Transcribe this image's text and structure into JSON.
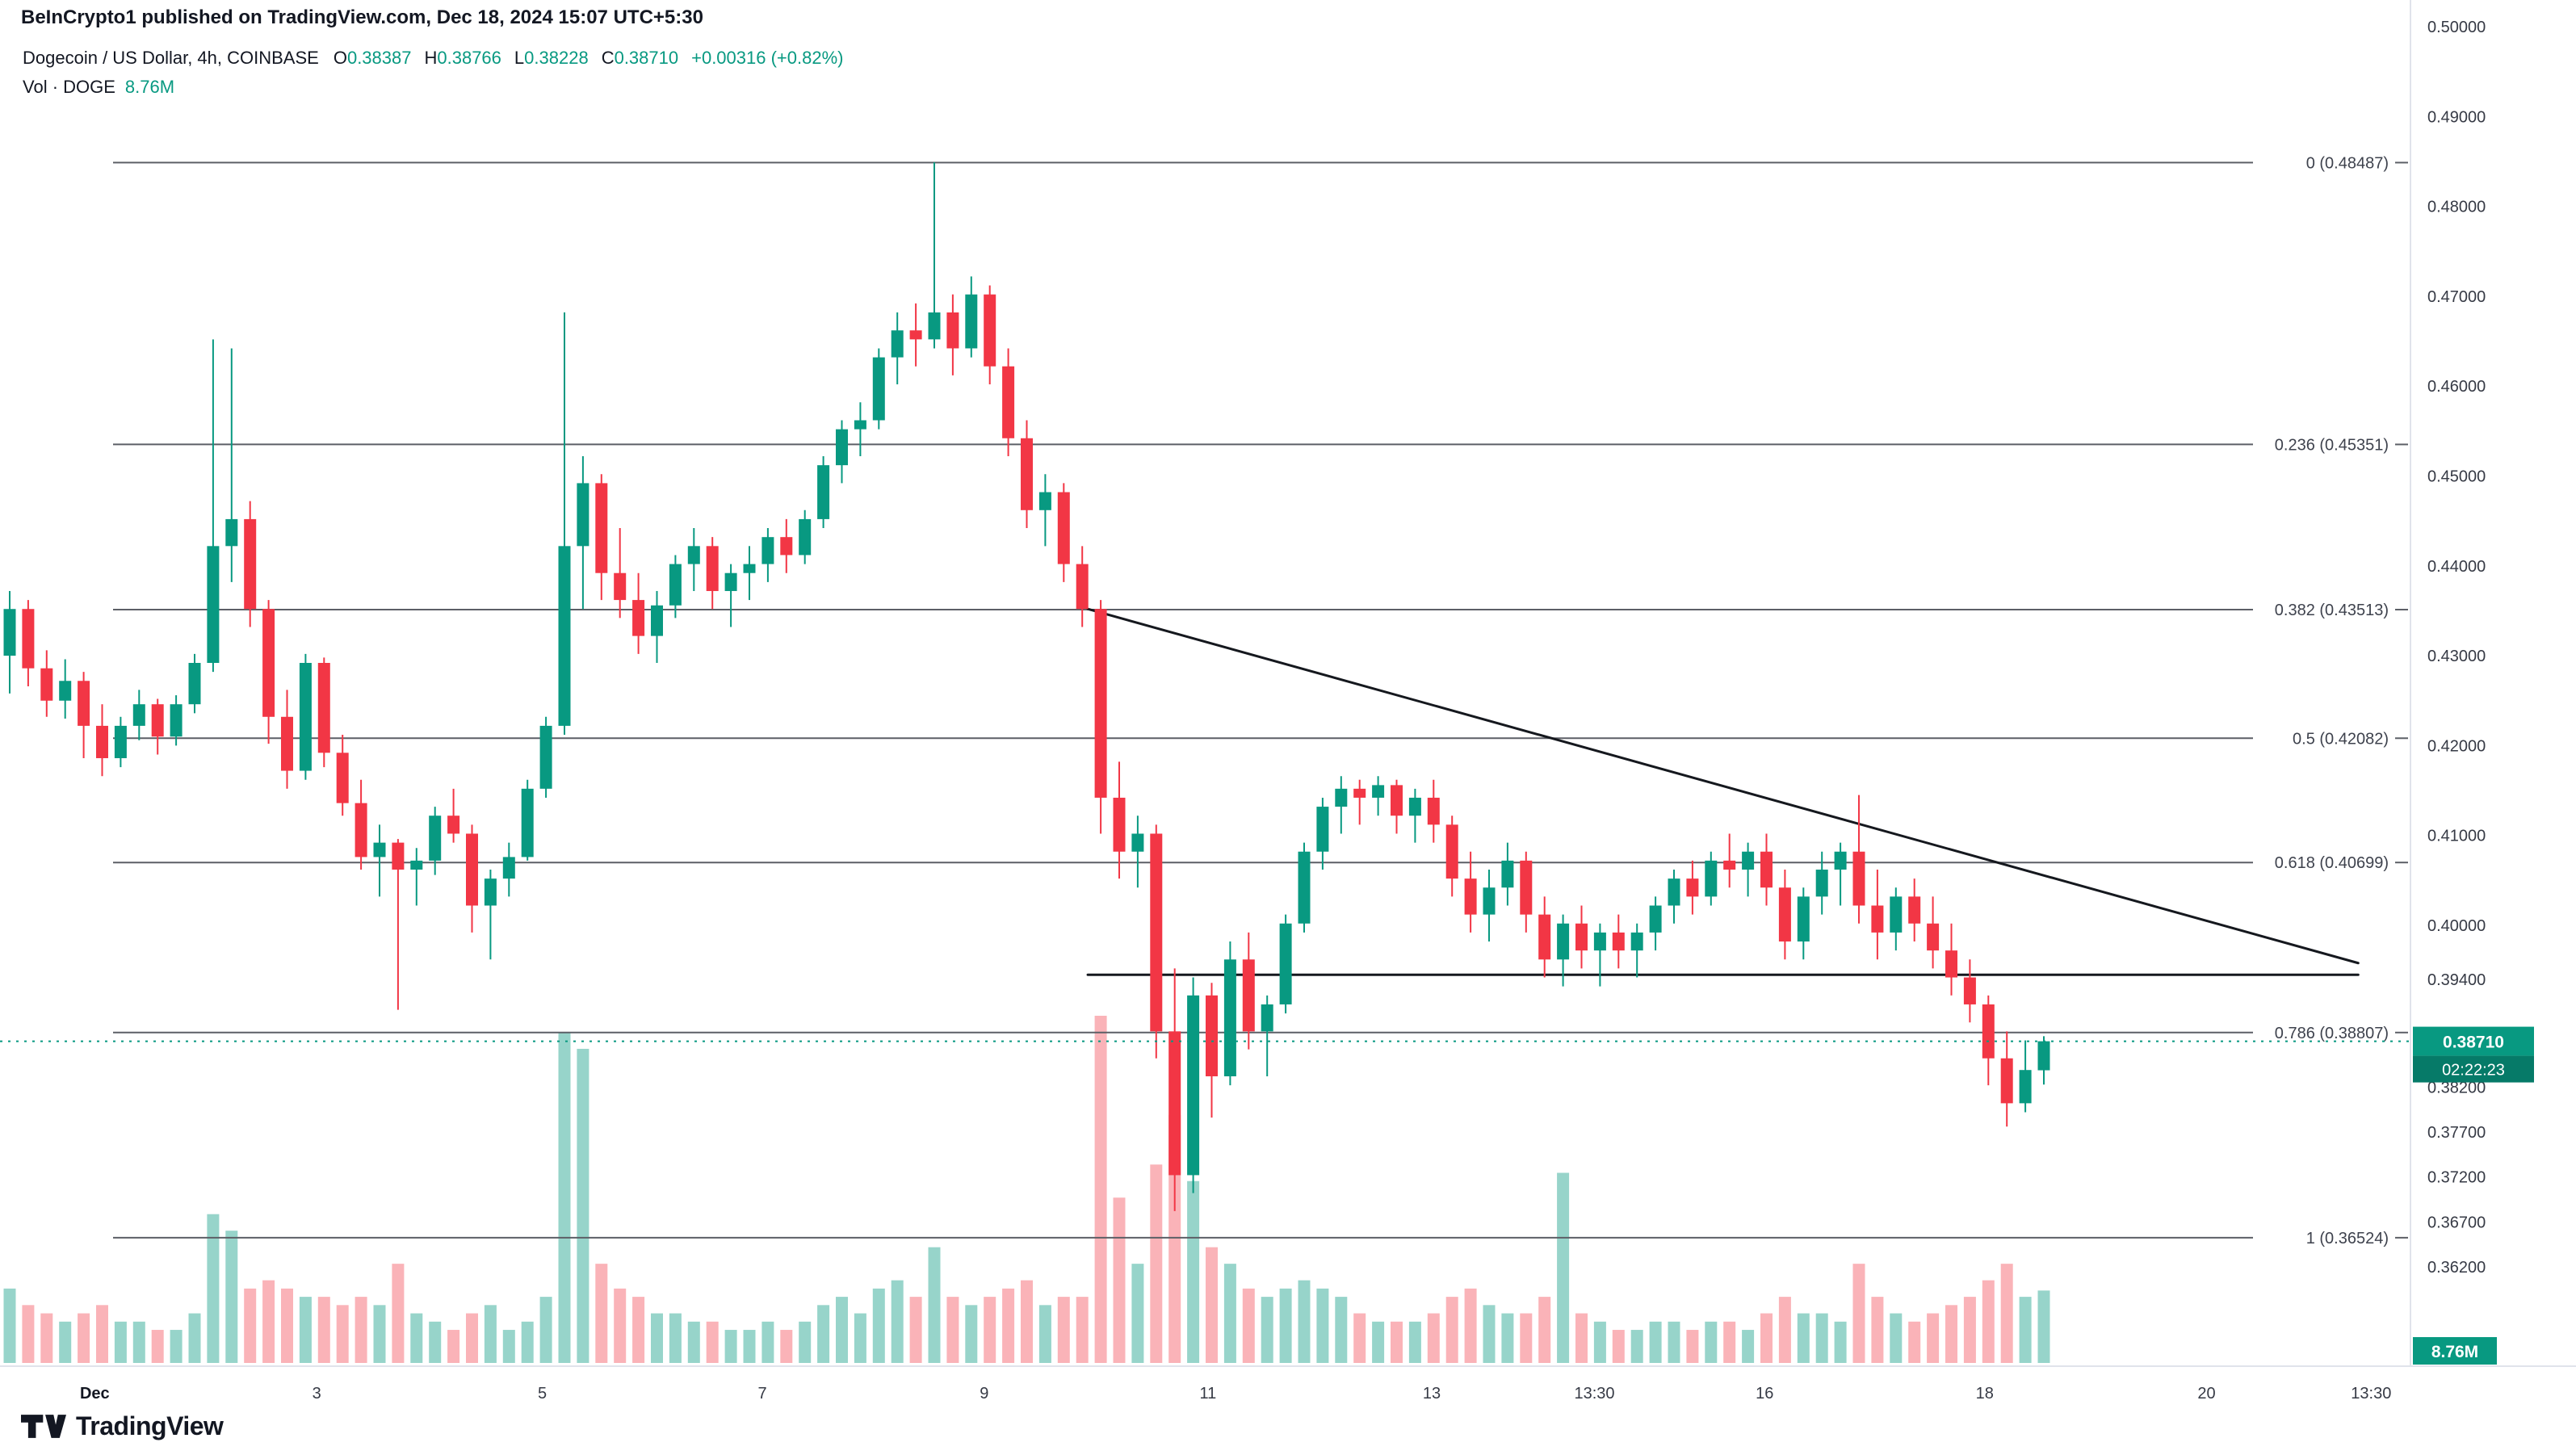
{
  "header": {
    "attribution": "BeInCrypto1 published on TradingView.com, Dec 18, 2024 15:07 UTC+5:30"
  },
  "legend": {
    "title": "Dogecoin / US Dollar, 4h, COINBASE",
    "ohlc": [
      {
        "k": "O",
        "v": "0.38387"
      },
      {
        "k": "H",
        "v": "0.38766"
      },
      {
        "k": "L",
        "v": "0.38228"
      },
      {
        "k": "C",
        "v": "0.38710"
      }
    ],
    "change": "+0.00316 (+0.82%)",
    "vol_label": "Vol · DOGE",
    "vol_value": "8.76M"
  },
  "logo": {
    "text": "TradingView"
  },
  "colors": {
    "up": "#089981",
    "down": "#f23645",
    "vol_up": "rgba(8,153,129,0.42)",
    "vol_down": "rgba(242,54,69,0.38)",
    "fib_line": "#5c5f66",
    "trend": "#15181e",
    "badge": "#089981",
    "countdown_bg": "#067a68",
    "axis_border": "#e0e3eb"
  },
  "chart_data": {
    "type": "candlestick",
    "symbol": "Dogecoin / US Dollar",
    "exchange": "COINBASE",
    "interval": "4h",
    "title": "Dogecoin / US Dollar, 4h, COINBASE",
    "price_range": [
      0.362,
      0.5
    ],
    "grid": false,
    "current_price": {
      "value": 0.3871,
      "text": "0.38710",
      "countdown": "02:22:23"
    },
    "volume_badge": "8.76M",
    "price_axis_labels": [
      "0.50000",
      "0.49000",
      "0.48000",
      "0.47000",
      "0.46000",
      "0.45000",
      "0.44000",
      "0.43000",
      "0.42000",
      "0.41000",
      "0.40000",
      "0.39400",
      "0.38200",
      "0.37700",
      "0.37200",
      "0.36700",
      "0.36200"
    ],
    "time_labels": [
      {
        "label": "Dec",
        "idx": 4.6,
        "bold": true
      },
      {
        "label": "3",
        "idx": 16.6
      },
      {
        "label": "5",
        "idx": 28.8
      },
      {
        "label": "7",
        "idx": 40.7
      },
      {
        "label": "9",
        "idx": 52.7
      },
      {
        "label": "11",
        "idx": 64.8
      },
      {
        "label": "13",
        "idx": 76.9
      },
      {
        "label": "13:30",
        "idx": 85.7
      },
      {
        "label": "16",
        "idx": 94.9
      },
      {
        "label": "18",
        "idx": 106.8
      },
      {
        "label": "20",
        "idx": 118.8
      },
      {
        "label": "13:30",
        "idx": 127.7
      }
    ],
    "fib_levels": [
      {
        "label": "0 (0.48487)",
        "level": "0",
        "price": 0.48487
      },
      {
        "label": "0.236 (0.45351)",
        "level": "0.236",
        "price": 0.45351
      },
      {
        "label": "0.382 (0.43513)",
        "level": "0.382",
        "price": 0.43513
      },
      {
        "label": "0.5 (0.42082)",
        "level": "0.5",
        "price": 0.42082
      },
      {
        "label": "0.618 (0.40699)",
        "level": "0.618",
        "price": 0.40699
      },
      {
        "label": "0.786 (0.38807)",
        "level": "0.786",
        "price": 0.38807
      },
      {
        "label": "1 (0.36524)",
        "level": "1",
        "price": 0.36524
      }
    ],
    "trendlines": [
      {
        "name": "triangle-resistance",
        "from": {
          "idx": 58.3,
          "price": 0.4352
        },
        "to": {
          "idx": 127,
          "price": 0.3958
        }
      },
      {
        "name": "triangle-support",
        "from": {
          "idx": 58.3,
          "price": 0.3945
        },
        "to": {
          "idx": 127,
          "price": 0.3945
        }
      }
    ],
    "candles": [
      [
        0.43,
        0.4372,
        0.4258,
        0.4352
      ],
      [
        0.4352,
        0.4362,
        0.4266,
        0.4286
      ],
      [
        0.4286,
        0.4306,
        0.4232,
        0.425
      ],
      [
        0.425,
        0.4296,
        0.423,
        0.4272
      ],
      [
        0.4272,
        0.4282,
        0.4186,
        0.4222
      ],
      [
        0.4222,
        0.4246,
        0.4166,
        0.4186
      ],
      [
        0.4186,
        0.4232,
        0.4176,
        0.4222
      ],
      [
        0.4222,
        0.4262,
        0.4206,
        0.4246
      ],
      [
        0.4246,
        0.4252,
        0.419,
        0.421
      ],
      [
        0.421,
        0.4256,
        0.42,
        0.4246
      ],
      [
        0.4246,
        0.4302,
        0.4236,
        0.4292
      ],
      [
        0.4292,
        0.4652,
        0.4282,
        0.4422
      ],
      [
        0.4422,
        0.4642,
        0.4382,
        0.4452
      ],
      [
        0.4452,
        0.4472,
        0.4332,
        0.4352
      ],
      [
        0.4352,
        0.4362,
        0.4202,
        0.4232
      ],
      [
        0.4232,
        0.4262,
        0.4152,
        0.4172
      ],
      [
        0.4172,
        0.4302,
        0.4162,
        0.4292
      ],
      [
        0.4292,
        0.4298,
        0.4176,
        0.4192
      ],
      [
        0.4192,
        0.4212,
        0.4122,
        0.4136
      ],
      [
        0.4136,
        0.4162,
        0.4062,
        0.4076
      ],
      [
        0.4076,
        0.4112,
        0.4032,
        0.4092
      ],
      [
        0.4092,
        0.4096,
        0.3906,
        0.4062
      ],
      [
        0.4062,
        0.4086,
        0.4022,
        0.4072
      ],
      [
        0.4072,
        0.4132,
        0.4056,
        0.4122
      ],
      [
        0.4122,
        0.4152,
        0.4092,
        0.4102
      ],
      [
        0.4102,
        0.4112,
        0.3992,
        0.4022
      ],
      [
        0.4022,
        0.4062,
        0.3962,
        0.4052
      ],
      [
        0.4052,
        0.4092,
        0.4032,
        0.4076
      ],
      [
        0.4076,
        0.4162,
        0.4072,
        0.4152
      ],
      [
        0.4152,
        0.4232,
        0.4142,
        0.4222
      ],
      [
        0.4222,
        0.4682,
        0.4212,
        0.4422
      ],
      [
        0.4422,
        0.4522,
        0.4352,
        0.4492
      ],
      [
        0.4492,
        0.4502,
        0.4362,
        0.4392
      ],
      [
        0.4392,
        0.4442,
        0.4342,
        0.4362
      ],
      [
        0.4362,
        0.4392,
        0.4302,
        0.4322
      ],
      [
        0.4322,
        0.4372,
        0.4292,
        0.4356
      ],
      [
        0.4356,
        0.4412,
        0.4342,
        0.4402
      ],
      [
        0.4402,
        0.4442,
        0.4372,
        0.4422
      ],
      [
        0.4422,
        0.4432,
        0.4352,
        0.4372
      ],
      [
        0.4372,
        0.4402,
        0.4332,
        0.4392
      ],
      [
        0.4392,
        0.4422,
        0.4362,
        0.4402
      ],
      [
        0.4402,
        0.4442,
        0.4382,
        0.4432
      ],
      [
        0.4432,
        0.4452,
        0.4392,
        0.4412
      ],
      [
        0.4412,
        0.4462,
        0.4402,
        0.4452
      ],
      [
        0.4452,
        0.4522,
        0.4442,
        0.4512
      ],
      [
        0.4512,
        0.4562,
        0.4492,
        0.4552
      ],
      [
        0.4552,
        0.4582,
        0.4522,
        0.4562
      ],
      [
        0.4562,
        0.4642,
        0.4552,
        0.4632
      ],
      [
        0.4632,
        0.4682,
        0.4602,
        0.4662
      ],
      [
        0.4662,
        0.4692,
        0.4622,
        0.4652
      ],
      [
        0.4652,
        0.4849,
        0.4642,
        0.4682
      ],
      [
        0.4682,
        0.4702,
        0.4612,
        0.4642
      ],
      [
        0.4642,
        0.4722,
        0.4632,
        0.4702
      ],
      [
        0.4702,
        0.4712,
        0.4602,
        0.4622
      ],
      [
        0.4622,
        0.4642,
        0.4522,
        0.4542
      ],
      [
        0.4542,
        0.4562,
        0.4442,
        0.4462
      ],
      [
        0.4462,
        0.4502,
        0.4422,
        0.4482
      ],
      [
        0.4482,
        0.4492,
        0.4382,
        0.4402
      ],
      [
        0.4402,
        0.4422,
        0.4332,
        0.4352
      ],
      [
        0.4352,
        0.4362,
        0.4102,
        0.4142
      ],
      [
        0.4142,
        0.4182,
        0.4052,
        0.4082
      ],
      [
        0.4082,
        0.4122,
        0.4042,
        0.4102
      ],
      [
        0.4102,
        0.4112,
        0.3852,
        0.3882
      ],
      [
        0.3882,
        0.3952,
        0.3682,
        0.3722
      ],
      [
        0.3722,
        0.3942,
        0.3702,
        0.3922
      ],
      [
        0.3922,
        0.3936,
        0.3786,
        0.3832
      ],
      [
        0.3832,
        0.3982,
        0.3822,
        0.3962
      ],
      [
        0.3962,
        0.3992,
        0.3862,
        0.3882
      ],
      [
        0.3882,
        0.3922,
        0.3832,
        0.3912
      ],
      [
        0.3912,
        0.4012,
        0.3902,
        0.4002
      ],
      [
        0.4002,
        0.4092,
        0.3992,
        0.4082
      ],
      [
        0.4082,
        0.4142,
        0.4062,
        0.4132
      ],
      [
        0.4132,
        0.4166,
        0.4102,
        0.4152
      ],
      [
        0.4152,
        0.4162,
        0.4112,
        0.4142
      ],
      [
        0.4142,
        0.4166,
        0.4122,
        0.4156
      ],
      [
        0.4156,
        0.4162,
        0.4102,
        0.4122
      ],
      [
        0.4122,
        0.4152,
        0.4092,
        0.4142
      ],
      [
        0.4142,
        0.4162,
        0.4092,
        0.4112
      ],
      [
        0.4112,
        0.4122,
        0.4032,
        0.4052
      ],
      [
        0.4052,
        0.4082,
        0.3992,
        0.4012
      ],
      [
        0.4012,
        0.4062,
        0.3982,
        0.4042
      ],
      [
        0.4042,
        0.4092,
        0.4022,
        0.4072
      ],
      [
        0.4072,
        0.4082,
        0.3992,
        0.4012
      ],
      [
        0.4012,
        0.4032,
        0.3942,
        0.3962
      ],
      [
        0.3962,
        0.4012,
        0.3932,
        0.4002
      ],
      [
        0.4002,
        0.4022,
        0.3952,
        0.3972
      ],
      [
        0.3972,
        0.4002,
        0.3932,
        0.3992
      ],
      [
        0.3992,
        0.4012,
        0.3952,
        0.3972
      ],
      [
        0.3972,
        0.4002,
        0.3942,
        0.3992
      ],
      [
        0.3992,
        0.4032,
        0.3972,
        0.4022
      ],
      [
        0.4022,
        0.4062,
        0.4002,
        0.4052
      ],
      [
        0.4052,
        0.4072,
        0.4012,
        0.4032
      ],
      [
        0.4032,
        0.4082,
        0.4022,
        0.4072
      ],
      [
        0.4072,
        0.4102,
        0.4042,
        0.4062
      ],
      [
        0.4062,
        0.4092,
        0.4032,
        0.4082
      ],
      [
        0.4082,
        0.4102,
        0.4022,
        0.4042
      ],
      [
        0.4042,
        0.4062,
        0.3962,
        0.3982
      ],
      [
        0.3982,
        0.4042,
        0.3962,
        0.4032
      ],
      [
        0.4032,
        0.4082,
        0.4012,
        0.4062
      ],
      [
        0.4062,
        0.4092,
        0.4022,
        0.4082
      ],
      [
        0.4082,
        0.4145,
        0.4002,
        0.4022
      ],
      [
        0.4022,
        0.4062,
        0.3962,
        0.3992
      ],
      [
        0.3992,
        0.4042,
        0.3972,
        0.4032
      ],
      [
        0.4032,
        0.4052,
        0.3982,
        0.4002
      ],
      [
        0.4002,
        0.4032,
        0.3952,
        0.3972
      ],
      [
        0.3972,
        0.4002,
        0.3922,
        0.3942
      ],
      [
        0.3942,
        0.3962,
        0.3892,
        0.3912
      ],
      [
        0.3912,
        0.3922,
        0.3822,
        0.3852
      ],
      [
        0.3852,
        0.3882,
        0.3776,
        0.3802
      ],
      [
        0.3802,
        0.3872,
        0.3792,
        0.3839
      ],
      [
        0.38387,
        0.38766,
        0.38228,
        0.3871
      ]
    ],
    "volumes_m": [
      9,
      7,
      6,
      5,
      6,
      7,
      5,
      5,
      4,
      4,
      6,
      18,
      16,
      9,
      10,
      9,
      8,
      8,
      7,
      8,
      7,
      12,
      6,
      5,
      4,
      6,
      7,
      4,
      5,
      8,
      40,
      38,
      12,
      9,
      8,
      6,
      6,
      5,
      5,
      4,
      4,
      5,
      4,
      5,
      7,
      8,
      6,
      9,
      10,
      8,
      14,
      8,
      7,
      8,
      9,
      10,
      7,
      8,
      8,
      42,
      20,
      12,
      24,
      30,
      22,
      14,
      12,
      9,
      8,
      9,
      10,
      9,
      8,
      6,
      5,
      5,
      5,
      6,
      8,
      9,
      7,
      6,
      6,
      8,
      23,
      6,
      5,
      4,
      4,
      5,
      5,
      4,
      5,
      5,
      4,
      6,
      8,
      6,
      6,
      5,
      12,
      8,
      6,
      5,
      6,
      7,
      8,
      10,
      12,
      8,
      8.76
    ]
  }
}
